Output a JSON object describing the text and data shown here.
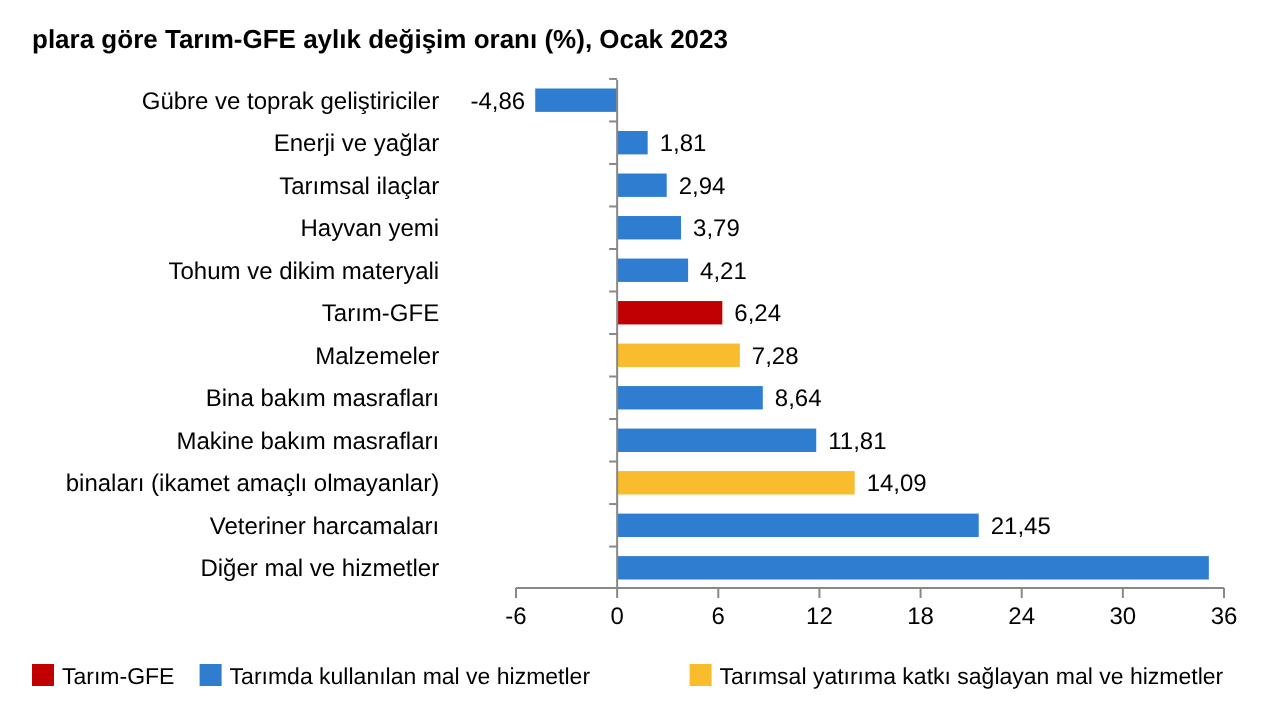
{
  "chart_data": {
    "type": "bar",
    "orientation": "horizontal",
    "title": "plara göre Tarım-GFE aylık değişim oranı (%), Ocak 2023",
    "categories": [
      "Gübre ve toprak geliştiriciler",
      "Enerji ve yağlar",
      "Tarımsal ilaçlar",
      "Hayvan yemi",
      "Tohum ve dikim materyali",
      "Tarım-GFE",
      "Malzemeler",
      "Bina bakım masrafları",
      "Makine bakım masrafları",
      "binaları (ikamet amaçlı olmayanlar)",
      "Veteriner harcamaları",
      "Diğer mal ve hizmetler"
    ],
    "series": [
      {
        "name": "Tarım-GFE",
        "color": "#c00000",
        "values": [
          null,
          null,
          null,
          null,
          null,
          6.24,
          null,
          null,
          null,
          null,
          null,
          null
        ],
        "value_labels": [
          null,
          null,
          null,
          null,
          null,
          "6,24",
          null,
          null,
          null,
          null,
          null,
          null
        ]
      },
      {
        "name": "Tarımda kullanılan mal ve hizmetler",
        "color": "#2e7dd1",
        "values": [
          -4.86,
          1.81,
          2.94,
          3.79,
          4.21,
          null,
          null,
          8.64,
          11.81,
          null,
          21.45,
          35.1
        ],
        "value_labels": [
          "-4,86",
          "1,81",
          "2,94",
          "3,79",
          "4,21",
          null,
          null,
          "8,64",
          "11,81",
          null,
          "21,45",
          null
        ]
      },
      {
        "name": "Tarımsal yatırıma katkı sağlayan mal ve hizmetler",
        "color": "#f8bc2c",
        "values": [
          null,
          null,
          null,
          null,
          null,
          null,
          7.28,
          null,
          null,
          14.09,
          null,
          null
        ],
        "value_labels": [
          null,
          null,
          null,
          null,
          null,
          null,
          "7,28",
          null,
          null,
          "14,09",
          null,
          null
        ]
      }
    ],
    "xlim": [
      -6,
      36
    ],
    "xticks": [
      -6,
      0,
      6,
      12,
      18,
      24,
      30,
      36
    ],
    "legend": "bottom"
  }
}
